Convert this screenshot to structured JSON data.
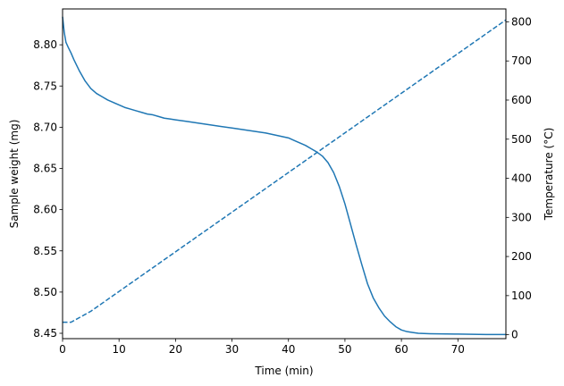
{
  "chart_data": {
    "type": "line",
    "xlabel": "Time (min)",
    "ylabel_left": "Sample weight (mg)",
    "ylabel_right": "Temperature (°C)",
    "xlim": [
      0,
      78.5
    ],
    "ylim_left": [
      8.4435,
      8.8435
    ],
    "ylim_right": [
      -10,
      833
    ],
    "x_ticks": [
      0,
      10,
      20,
      30,
      40,
      50,
      60,
      70
    ],
    "y_left_ticks": [
      8.45,
      8.5,
      8.55,
      8.6,
      8.65,
      8.7,
      8.75,
      8.8
    ],
    "y_left_tick_labels": [
      "8.45",
      "8.50",
      "8.55",
      "8.60",
      "8.65",
      "8.70",
      "8.75",
      "8.80"
    ],
    "y_right_ticks": [
      0,
      100,
      200,
      300,
      400,
      500,
      600,
      700,
      800
    ],
    "grid": false,
    "series": [
      {
        "axis": "left",
        "style": "solid",
        "color": "#1f77b4",
        "points": [
          [
            0,
            8.834
          ],
          [
            0.3,
            8.815
          ],
          [
            0.6,
            8.803
          ],
          [
            1,
            8.797
          ],
          [
            1.5,
            8.79
          ],
          [
            2,
            8.782
          ],
          [
            3,
            8.768
          ],
          [
            4,
            8.756
          ],
          [
            5,
            8.747
          ],
          [
            6,
            8.741
          ],
          [
            7,
            8.737
          ],
          [
            8,
            8.733
          ],
          [
            9,
            8.73
          ],
          [
            10,
            8.727
          ],
          [
            11,
            8.724
          ],
          [
            12,
            8.722
          ],
          [
            13,
            8.72
          ],
          [
            14,
            8.718
          ],
          [
            15,
            8.716
          ],
          [
            16,
            8.715
          ],
          [
            17,
            8.713
          ],
          [
            18,
            8.711
          ],
          [
            19,
            8.71
          ],
          [
            20,
            8.709
          ],
          [
            22,
            8.707
          ],
          [
            24,
            8.705
          ],
          [
            26,
            8.703
          ],
          [
            28,
            8.701
          ],
          [
            30,
            8.699
          ],
          [
            32,
            8.697
          ],
          [
            34,
            8.695
          ],
          [
            36,
            8.693
          ],
          [
            38,
            8.69
          ],
          [
            40,
            8.687
          ],
          [
            41,
            8.684
          ],
          [
            42,
            8.681
          ],
          [
            43,
            8.678
          ],
          [
            44,
            8.674
          ],
          [
            45,
            8.67
          ],
          [
            46,
            8.665
          ],
          [
            47,
            8.657
          ],
          [
            48,
            8.645
          ],
          [
            49,
            8.628
          ],
          [
            50,
            8.607
          ],
          [
            51,
            8.582
          ],
          [
            52,
            8.557
          ],
          [
            53,
            8.533
          ],
          [
            54,
            8.51
          ],
          [
            55,
            8.493
          ],
          [
            56,
            8.481
          ],
          [
            57,
            8.471
          ],
          [
            58,
            8.464
          ],
          [
            59,
            8.458
          ],
          [
            60,
            8.454
          ],
          [
            61,
            8.452
          ],
          [
            62,
            8.451
          ],
          [
            63,
            8.45
          ],
          [
            65,
            8.4495
          ],
          [
            70,
            8.449
          ],
          [
            75,
            8.4485
          ],
          [
            78.5,
            8.4485
          ]
        ]
      },
      {
        "axis": "right",
        "style": "dashed",
        "color": "#1f77b4",
        "points": [
          [
            0,
            32
          ],
          [
            1.5,
            32
          ],
          [
            3,
            44
          ],
          [
            5,
            60
          ],
          [
            78.5,
            805
          ]
        ]
      }
    ]
  }
}
